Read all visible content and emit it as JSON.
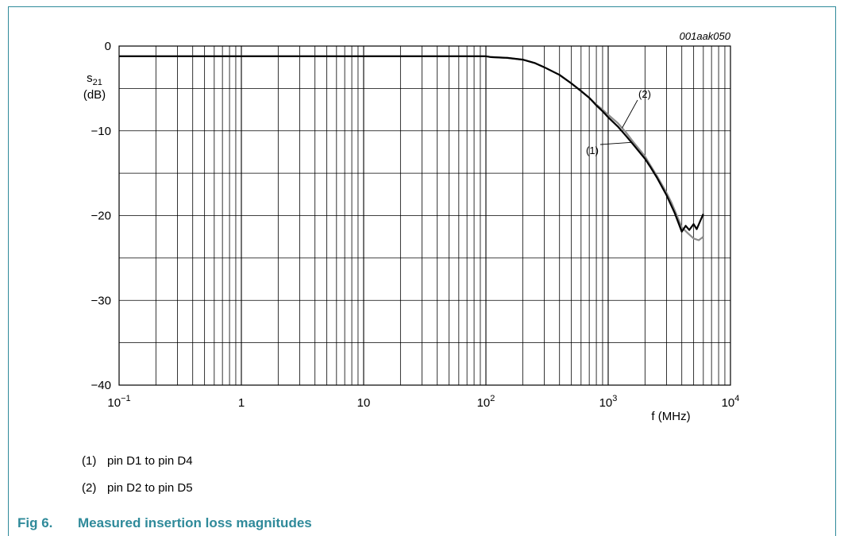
{
  "figure": {
    "code": "001aak050",
    "caption_number": "Fig 6.",
    "caption_title": "Measured insertion loss magnitudes"
  },
  "legend": [
    {
      "num": "(1)",
      "text": "pin D1 to pin D4"
    },
    {
      "num": "(2)",
      "text": "pin D2 to pin D5"
    }
  ],
  "colors": {
    "series1": "#000000",
    "series2": "#8c8c8c",
    "accent": "#2f8a9a"
  },
  "chart_data": {
    "type": "line",
    "x_scale": "log",
    "xlim": [
      0.1,
      10000
    ],
    "ylim": [
      -40,
      0
    ],
    "grid": true,
    "xlabel": "f (MHz)",
    "ylabel_main": "s",
    "ylabel_sub": "21",
    "ylabel_unit": "(dB)",
    "x_ticks": [
      {
        "value": 0.1,
        "base": "10",
        "exp": "−1"
      },
      {
        "value": 1,
        "base": "1",
        "exp": ""
      },
      {
        "value": 10,
        "base": "10",
        "exp": ""
      },
      {
        "value": 100,
        "base": "10",
        "exp": "2"
      },
      {
        "value": 1000,
        "base": "10",
        "exp": "3"
      },
      {
        "value": 10000,
        "base": "10",
        "exp": "4"
      }
    ],
    "y_ticks": [
      {
        "value": 0,
        "label": "0"
      },
      {
        "value": -10,
        "label": "−10"
      },
      {
        "value": -20,
        "label": "−20"
      },
      {
        "value": -30,
        "label": "−30"
      },
      {
        "value": -40,
        "label": "−40"
      }
    ],
    "series": [
      {
        "name": "(1)",
        "x": [
          0.1,
          1,
          10,
          100,
          110,
          150,
          200,
          250,
          300,
          400,
          500,
          600,
          700,
          800,
          900,
          1000,
          1200,
          1400,
          1600,
          1800,
          2000,
          2200,
          2500,
          3000,
          3500,
          4000,
          4300,
          4600,
          5000,
          5300,
          5600,
          6000
        ],
        "y": [
          -1.2,
          -1.2,
          -1.2,
          -1.2,
          -1.3,
          -1.4,
          -1.6,
          -2.0,
          -2.5,
          -3.4,
          -4.4,
          -5.3,
          -6.1,
          -7.0,
          -7.7,
          -8.4,
          -9.5,
          -10.6,
          -11.6,
          -12.5,
          -13.3,
          -14.2,
          -15.5,
          -17.6,
          -19.7,
          -21.9,
          -21.2,
          -21.7,
          -21.0,
          -21.6,
          -20.8,
          -19.8
        ]
      },
      {
        "name": "(2)",
        "x": [
          0.1,
          1,
          10,
          100,
          110,
          150,
          200,
          250,
          300,
          400,
          500,
          600,
          700,
          800,
          900,
          1000,
          1200,
          1400,
          1600,
          1800,
          2000,
          2200,
          2500,
          3000,
          3300,
          3600,
          4000,
          4500,
          5000,
          5500,
          6000
        ],
        "y": [
          -1.2,
          -1.2,
          -1.2,
          -1.2,
          -1.3,
          -1.4,
          -1.6,
          -2.0,
          -2.5,
          -3.4,
          -4.4,
          -5.3,
          -6.1,
          -6.9,
          -7.5,
          -8.1,
          -9.1,
          -10.2,
          -11.3,
          -12.2,
          -13.0,
          -14.0,
          -15.3,
          -17.3,
          -18.5,
          -19.8,
          -21.4,
          -22.1,
          -22.7,
          -22.9,
          -22.5
        ]
      }
    ],
    "annotations": [
      {
        "text": "(1)",
        "series": "(1)"
      },
      {
        "text": "(2)",
        "series": "(2)"
      }
    ]
  }
}
